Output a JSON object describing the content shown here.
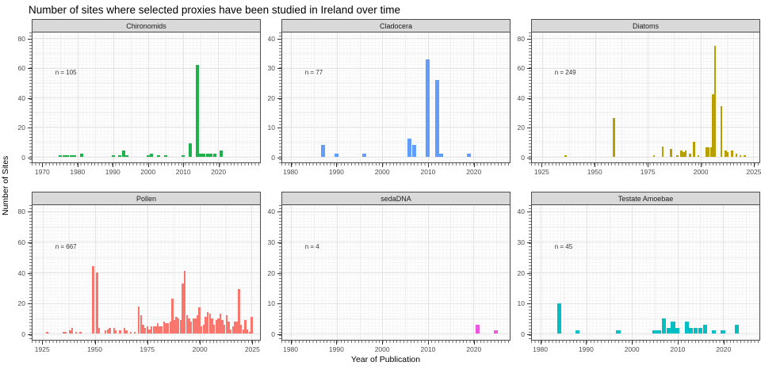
{
  "title": "Number of sites where selected proxies have been studied in Ireland over time",
  "chart_data": {
    "type": "bar",
    "layout": "facet-grid-2x3",
    "grid": true,
    "legend": "none",
    "title": "Number of sites where selected proxies have been studied in Ireland over time",
    "xlabel": "Year of Publication",
    "ylabel": "Number of Sites",
    "panels": [
      {
        "id": "chironomids",
        "label": "Chironomids",
        "n_label": "n = 105",
        "color": "#1fb24c",
        "xlim": [
          1967,
          2032
        ],
        "ylim": [
          0,
          80
        ],
        "xticks": [
          1970,
          1980,
          1990,
          2000,
          2010,
          2020
        ],
        "yticks": [
          0,
          20,
          40,
          60,
          80
        ],
        "bars": [
          [
            1975,
            1
          ],
          [
            1976,
            1
          ],
          [
            1977,
            1
          ],
          [
            1978,
            1
          ],
          [
            1979,
            1
          ],
          [
            1981,
            2
          ],
          [
            1990,
            1
          ],
          [
            1992,
            1
          ],
          [
            1993,
            4
          ],
          [
            1994,
            1
          ],
          [
            2000,
            1
          ],
          [
            2001,
            2
          ],
          [
            2003,
            1
          ],
          [
            2005,
            1
          ],
          [
            2010,
            1
          ],
          [
            2012,
            9
          ],
          [
            2014,
            62
          ],
          [
            2015,
            2
          ],
          [
            2016,
            2
          ],
          [
            2017,
            2
          ],
          [
            2018,
            2
          ],
          [
            2019,
            2
          ],
          [
            2021,
            4
          ]
        ]
      },
      {
        "id": "cladocera",
        "label": "Cladocera",
        "n_label": "n = 77",
        "color": "#619cff",
        "xlim": [
          1978,
          2028
        ],
        "ylim": [
          0,
          40
        ],
        "xticks": [
          1980,
          1990,
          2000,
          2010,
          2020
        ],
        "yticks": [
          0,
          10,
          20,
          30,
          40
        ],
        "bars": [
          [
            1987,
            4
          ],
          [
            1990,
            1
          ],
          [
            1996,
            1
          ],
          [
            2006,
            6
          ],
          [
            2007,
            4
          ],
          [
            2010,
            33
          ],
          [
            2012,
            26
          ],
          [
            2013,
            1
          ],
          [
            2019,
            1
          ]
        ]
      },
      {
        "id": "diatoms",
        "label": "Diatoms",
        "n_label": "n = 249",
        "color": "#b79f00",
        "xlim": [
          1920,
          2028
        ],
        "ylim": [
          0,
          80
        ],
        "xticks": [
          1925,
          1950,
          1975,
          2000,
          2025
        ],
        "yticks": [
          0,
          20,
          40,
          60,
          80
        ],
        "bars": [
          [
            1936,
            1
          ],
          [
            1959,
            26
          ],
          [
            1978,
            1
          ],
          [
            1982,
            7
          ],
          [
            1986,
            5
          ],
          [
            1989,
            1
          ],
          [
            1991,
            4
          ],
          [
            1992,
            3
          ],
          [
            1993,
            4
          ],
          [
            1995,
            2
          ],
          [
            1997,
            10
          ],
          [
            1999,
            1
          ],
          [
            2003,
            6
          ],
          [
            2004,
            6
          ],
          [
            2005,
            6
          ],
          [
            2006,
            42
          ],
          [
            2007,
            75
          ],
          [
            2010,
            34
          ],
          [
            2012,
            4
          ],
          [
            2013,
            3
          ],
          [
            2015,
            4
          ],
          [
            2017,
            2
          ],
          [
            2019,
            1
          ],
          [
            2021,
            1
          ]
        ]
      },
      {
        "id": "pollen",
        "label": "Pollen",
        "n_label": "n = 667",
        "color": "#f8766d",
        "xlim": [
          1920,
          2029
        ],
        "ylim": [
          0,
          80
        ],
        "xticks": [
          1925,
          1950,
          1975,
          2000,
          2025
        ],
        "yticks": [
          0,
          20,
          40,
          60,
          80
        ],
        "bars": [
          [
            1927,
            1
          ],
          [
            1935,
            1
          ],
          [
            1936,
            1
          ],
          [
            1938,
            2
          ],
          [
            1939,
            4
          ],
          [
            1941,
            1
          ],
          [
            1943,
            1
          ],
          [
            1949,
            44
          ],
          [
            1951,
            40
          ],
          [
            1952,
            4
          ],
          [
            1955,
            2
          ],
          [
            1956,
            3
          ],
          [
            1957,
            4
          ],
          [
            1959,
            4
          ],
          [
            1960,
            2
          ],
          [
            1962,
            2
          ],
          [
            1964,
            4
          ],
          [
            1965,
            2
          ],
          [
            1967,
            1
          ],
          [
            1969,
            1
          ],
          [
            1971,
            18
          ],
          [
            1972,
            12
          ],
          [
            1973,
            6
          ],
          [
            1974,
            4
          ],
          [
            1975,
            5
          ],
          [
            1976,
            3
          ],
          [
            1977,
            5
          ],
          [
            1978,
            5
          ],
          [
            1979,
            5
          ],
          [
            1980,
            7
          ],
          [
            1981,
            5
          ],
          [
            1982,
            5
          ],
          [
            1983,
            8
          ],
          [
            1984,
            7
          ],
          [
            1985,
            7
          ],
          [
            1986,
            8
          ],
          [
            1987,
            23
          ],
          [
            1988,
            9
          ],
          [
            1989,
            11
          ],
          [
            1990,
            10
          ],
          [
            1991,
            9
          ],
          [
            1992,
            33
          ],
          [
            1993,
            41
          ],
          [
            1994,
            12
          ],
          [
            1995,
            10
          ],
          [
            1996,
            8
          ],
          [
            1997,
            10
          ],
          [
            1998,
            10
          ],
          [
            1999,
            12
          ],
          [
            2000,
            17
          ],
          [
            2001,
            5
          ],
          [
            2002,
            6
          ],
          [
            2003,
            11
          ],
          [
            2004,
            14
          ],
          [
            2005,
            13
          ],
          [
            2006,
            10
          ],
          [
            2007,
            6
          ],
          [
            2008,
            9
          ],
          [
            2009,
            10
          ],
          [
            2010,
            13
          ],
          [
            2011,
            9
          ],
          [
            2012,
            6
          ],
          [
            2013,
            12
          ],
          [
            2014,
            8
          ],
          [
            2015,
            3
          ],
          [
            2016,
            5
          ],
          [
            2017,
            8
          ],
          [
            2018,
            8
          ],
          [
            2019,
            29
          ],
          [
            2020,
            6
          ],
          [
            2021,
            3
          ],
          [
            2022,
            9
          ],
          [
            2023,
            3
          ],
          [
            2024,
            1
          ],
          [
            2025,
            11
          ]
        ]
      },
      {
        "id": "sedadna",
        "label": "sedaDNA",
        "n_label": "n = 4",
        "color": "#ee57dd",
        "xlim": [
          1978,
          2028
        ],
        "ylim": [
          0,
          40
        ],
        "xticks": [
          1980,
          1990,
          2000,
          2010,
          2020
        ],
        "yticks": [
          0,
          10,
          20,
          30,
          40
        ],
        "bars": [
          [
            2021,
            3
          ],
          [
            2025,
            1
          ]
        ]
      },
      {
        "id": "testate-amoebae",
        "label": "Testate Amoebae",
        "n_label": "n = 45",
        "color": "#00bfc4",
        "xlim": [
          1978,
          2028
        ],
        "ylim": [
          0,
          40
        ],
        "xticks": [
          1980,
          1990,
          2000,
          2010,
          2020
        ],
        "yticks": [
          0,
          10,
          20,
          30,
          40
        ],
        "bars": [
          [
            1984,
            10
          ],
          [
            1988,
            1
          ],
          [
            1997,
            1
          ],
          [
            2005,
            1
          ],
          [
            2006,
            1
          ],
          [
            2007,
            5
          ],
          [
            2008,
            2
          ],
          [
            2009,
            4
          ],
          [
            2010,
            2
          ],
          [
            2012,
            4
          ],
          [
            2013,
            2
          ],
          [
            2014,
            2
          ],
          [
            2015,
            2
          ],
          [
            2016,
            3
          ],
          [
            2018,
            1
          ],
          [
            2020,
            1
          ],
          [
            2023,
            3
          ]
        ]
      }
    ]
  }
}
